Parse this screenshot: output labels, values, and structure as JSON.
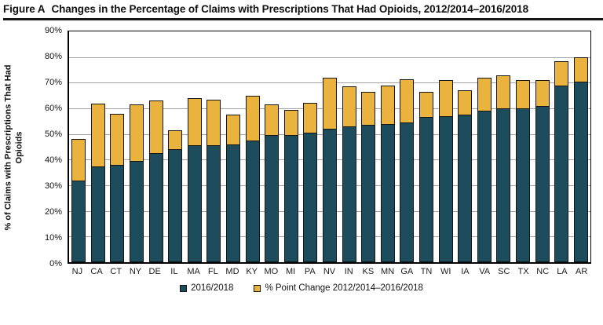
{
  "title": {
    "prefix": "Figure A",
    "text": "Changes in the Percentage of Claims with Prescriptions That Had Opioids, 2012/2014–2016/2018"
  },
  "y_axis": {
    "label": "% of Claims with Prescriptions That Had Opioids",
    "ticks": [
      "90%",
      "80%",
      "70%",
      "60%",
      "50%",
      "40%",
      "30%",
      "20%",
      "10%",
      "0%"
    ]
  },
  "chart_data": {
    "type": "bar",
    "stacked": true,
    "grid": true,
    "legend_position": "bottom",
    "ylim": [
      0,
      90
    ],
    "ytick_step": 10,
    "ylabel": "% of Claims with Prescriptions That Had Opioids",
    "xlabel": "",
    "categories": [
      "NJ",
      "CA",
      "CT",
      "NY",
      "DE",
      "IL",
      "MA",
      "FL",
      "MD",
      "KY",
      "MO",
      "MI",
      "PA",
      "NV",
      "IN",
      "KS",
      "MN",
      "GA",
      "TN",
      "WI",
      "IA",
      "VA",
      "SC",
      "TX",
      "NC",
      "LA",
      "AR"
    ],
    "series": [
      {
        "name": "2016/2018",
        "color": "#1D4C5C",
        "values": [
          32,
          37.5,
          38,
          39.5,
          42.5,
          44,
          45.5,
          45.5,
          46,
          47.5,
          49.5,
          49.5,
          50.5,
          52,
          53,
          53.5,
          54,
          54.5,
          56.5,
          57,
          57.5,
          59,
          60,
          60,
          61,
          69,
          70.5
        ]
      },
      {
        "name": "% Point Change 2012/2014–2016/2018",
        "color": "#EAB33E",
        "values": [
          16,
          24.5,
          20,
          22,
          20.5,
          7.5,
          18.5,
          18,
          11.5,
          17.5,
          12,
          10,
          11.5,
          20,
          15.5,
          13,
          15,
          17,
          10,
          14,
          9.5,
          13,
          13,
          11,
          10,
          9.5,
          9.5
        ]
      }
    ],
    "stacked_totals": [
      48,
      62,
      58,
      61.5,
      63,
      51.5,
      64,
      63.5,
      57.5,
      65,
      61.5,
      59.5,
      62,
      72,
      68.5,
      66.5,
      69,
      71.5,
      66.5,
      71,
      67,
      72,
      73,
      71,
      71,
      78.5,
      80
    ]
  },
  "legend": {
    "items": [
      {
        "label": "2016/2018",
        "color": "#1D4C5C"
      },
      {
        "label": "% Point Change 2012/2014–2016/2018",
        "color": "#EAB33E"
      }
    ]
  }
}
